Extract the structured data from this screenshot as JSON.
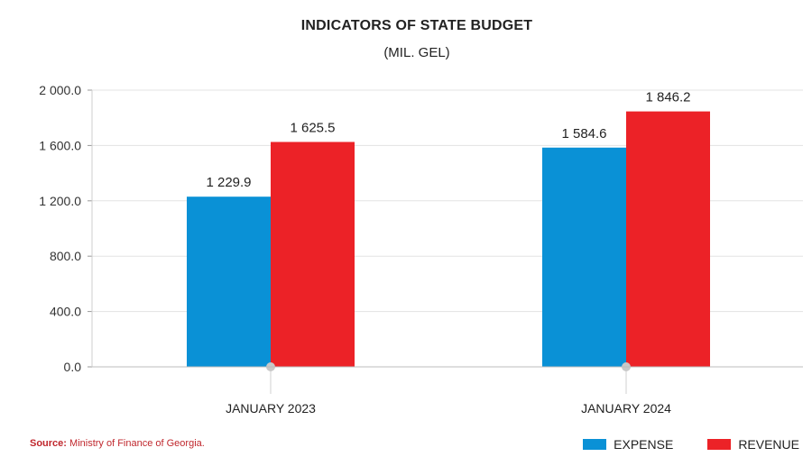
{
  "chart_data": {
    "type": "bar",
    "title": "INDICATORS OF STATE BUDGET",
    "subtitle": "(MIL. GEL)",
    "categories": [
      "JANUARY 2023",
      "JANUARY 2024"
    ],
    "series": [
      {
        "name": "EXPENSE",
        "color": "#0a91d6",
        "values": [
          1229.9,
          1584.6
        ],
        "labels": [
          "1 229.9",
          "1 584.6"
        ]
      },
      {
        "name": "REVENUE",
        "color": "#ec2227",
        "values": [
          1625.5,
          1846.2
        ],
        "labels": [
          "1 625.5",
          "1 846.2"
        ]
      }
    ],
    "ylim": [
      0,
      2000
    ],
    "yticks": [
      0,
      400,
      800,
      1200,
      1600,
      2000
    ],
    "ytick_labels": [
      "0.0",
      "400.0",
      "800.0",
      "1 200.0",
      "1 600.0",
      "2 000.0"
    ],
    "xlabel": "",
    "ylabel": "",
    "grid": true,
    "legend": "bottom-right"
  },
  "source": {
    "prefix": "Source:",
    "text": "Ministry of Finance of Georgia."
  }
}
